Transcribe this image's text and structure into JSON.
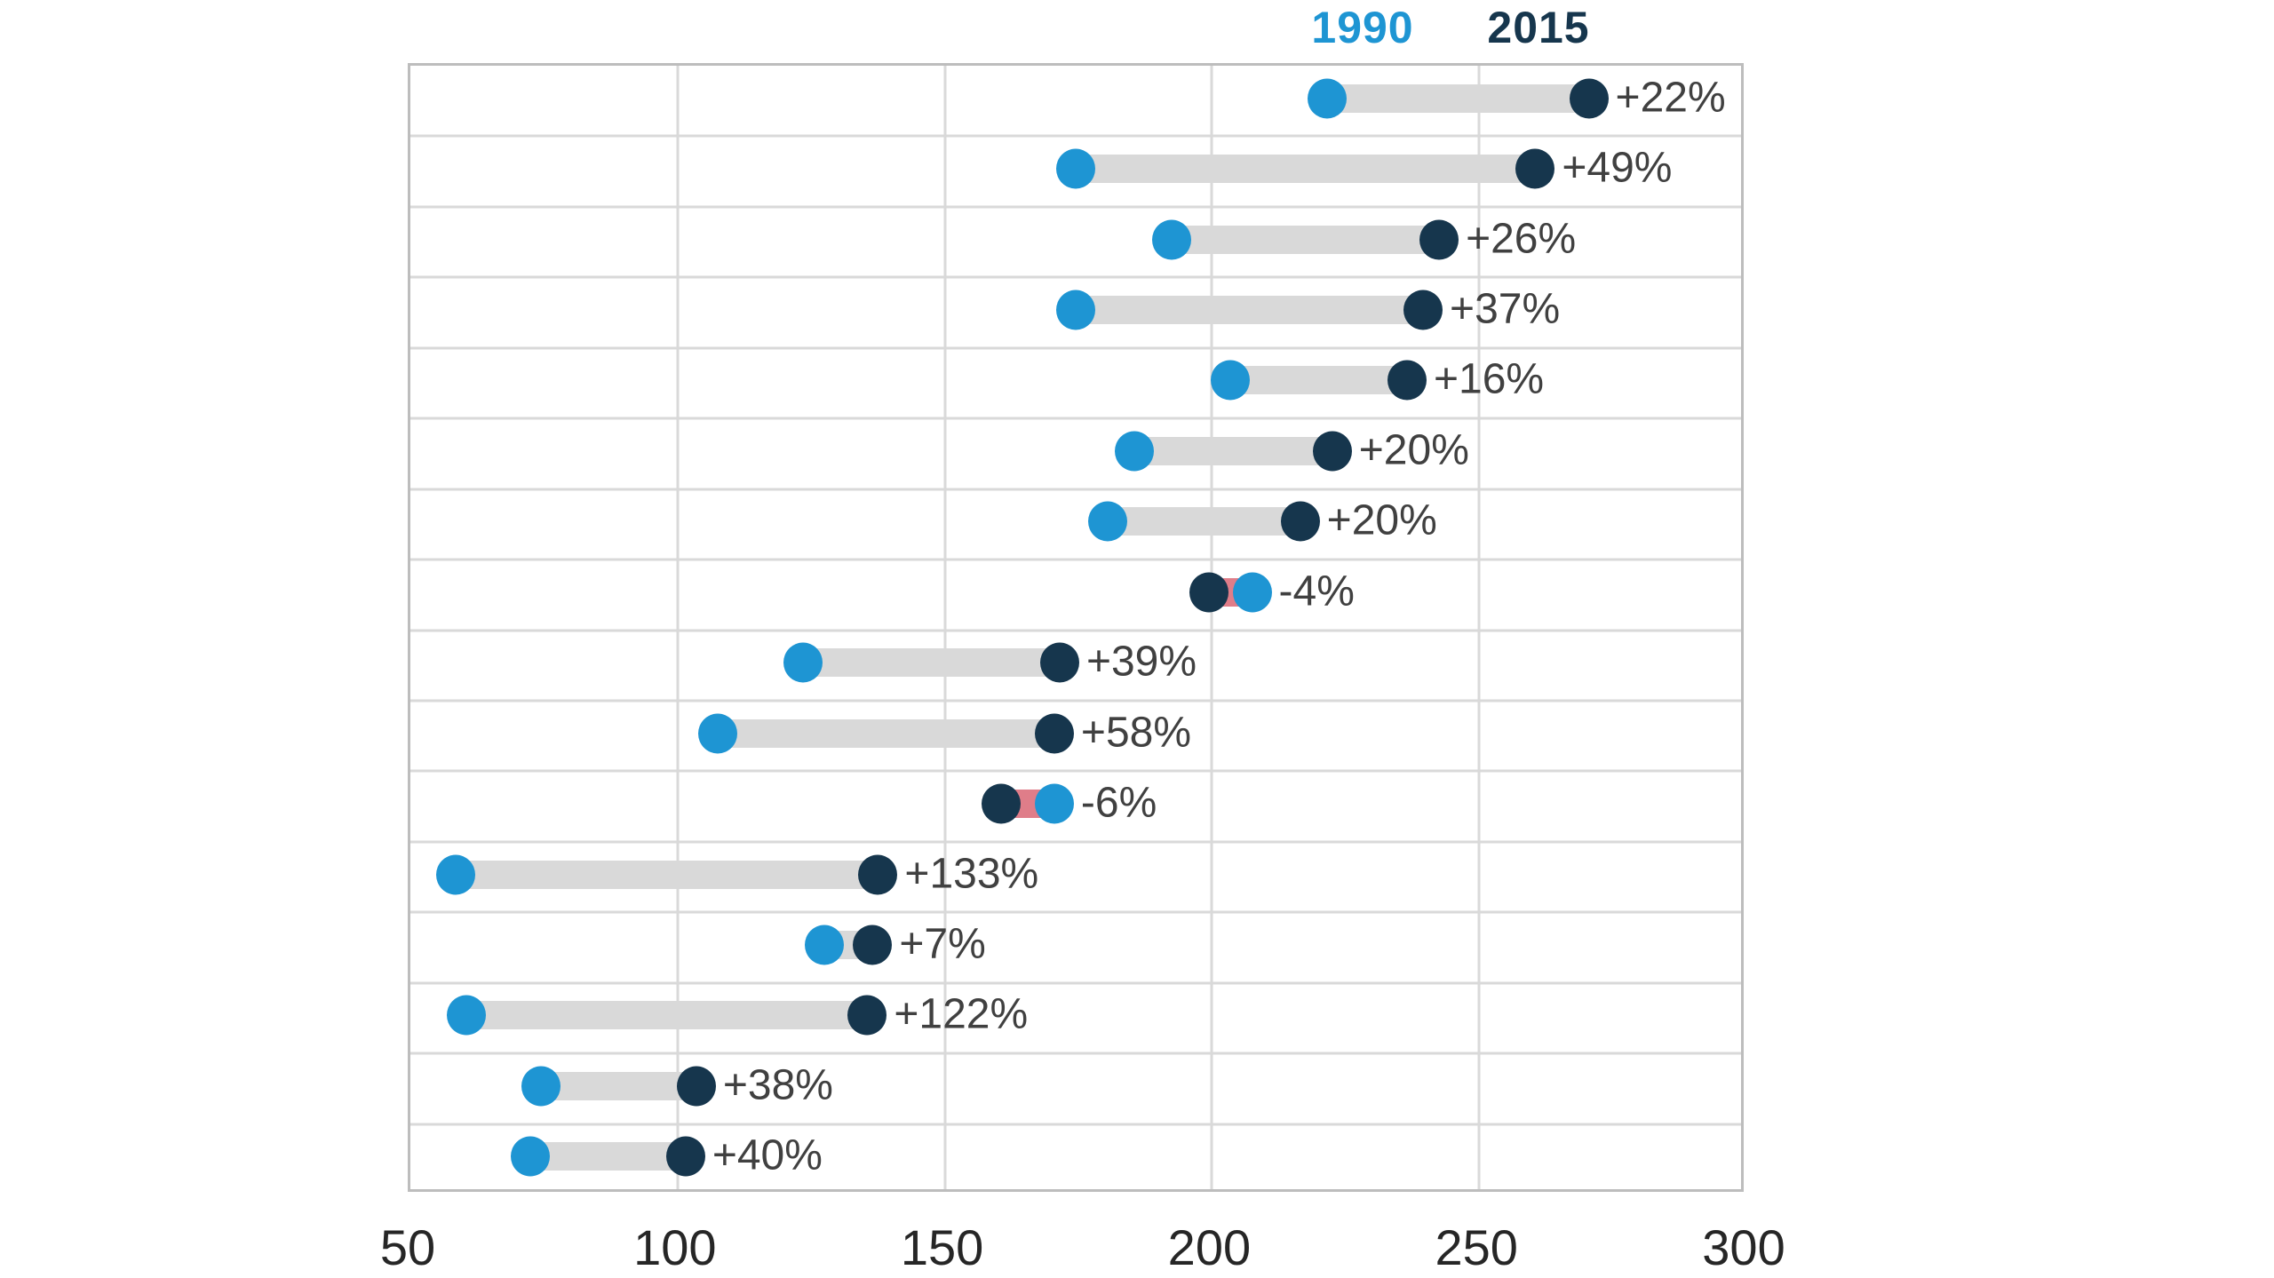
{
  "chart_data": {
    "type": "scatter",
    "variant": "dumbbell-connected-dot-plot",
    "title": "",
    "legend": [
      {
        "label": "1990",
        "color": "#1e95d3"
      },
      {
        "label": "2015",
        "color": "#16364d"
      }
    ],
    "legend_position": "top",
    "x_axis": {
      "range": [
        50,
        300
      ],
      "ticks": [
        50,
        100,
        150,
        200,
        250,
        300
      ],
      "gridlines": true
    },
    "rows": [
      {
        "v1990": 222,
        "v2015": 271,
        "change": "+22%"
      },
      {
        "v1990": 175,
        "v2015": 261,
        "change": "+49%"
      },
      {
        "v1990": 193,
        "v2015": 243,
        "change": "+26%"
      },
      {
        "v1990": 175,
        "v2015": 240,
        "change": "+37%"
      },
      {
        "v1990": 204,
        "v2015": 237,
        "change": "+16%"
      },
      {
        "v1990": 186,
        "v2015": 223,
        "change": "+20%"
      },
      {
        "v1990": 181,
        "v2015": 217,
        "change": "+20%"
      },
      {
        "v1990": 208,
        "v2015": 200,
        "change": "-4%"
      },
      {
        "v1990": 124,
        "v2015": 172,
        "change": "+39%"
      },
      {
        "v1990": 108,
        "v2015": 171,
        "change": "+58%"
      },
      {
        "v1990": 171,
        "v2015": 161,
        "change": "-6%"
      },
      {
        "v1990": 59,
        "v2015": 138,
        "change": "+133%"
      },
      {
        "v1990": 128,
        "v2015": 137,
        "change": "+7%"
      },
      {
        "v1990": 61,
        "v2015": 136,
        "change": "+122%"
      },
      {
        "v1990": 75,
        "v2015": 104,
        "change": "+38%"
      },
      {
        "v1990": 73,
        "v2015": 102,
        "change": "+40%"
      }
    ],
    "colors": {
      "dot_1990": "#1e95d3",
      "dot_2015": "#16364d",
      "connector_positive": "#d9d9d9",
      "connector_negative": "#df7d89",
      "gridline": "#d9d9d9",
      "plot_border": "#bdbdbd",
      "label_text": "#404040",
      "axis_text": "#262626"
    }
  }
}
